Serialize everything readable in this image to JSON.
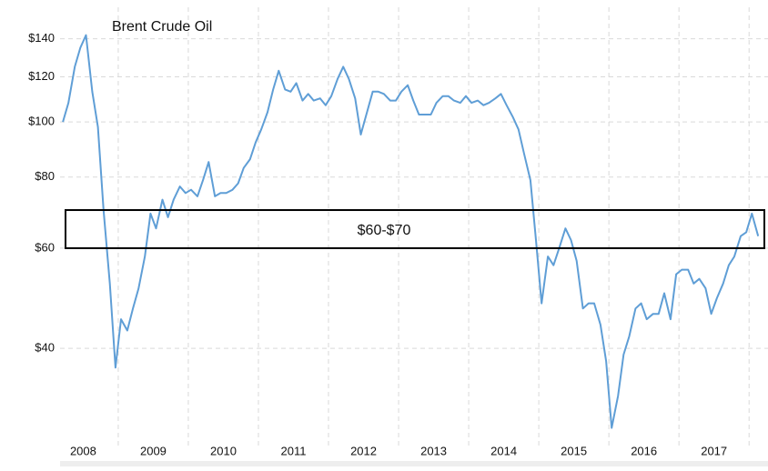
{
  "chart_data": {
    "type": "line",
    "title": "Brent Crude Oil",
    "log_scale_y": true,
    "grid": true,
    "xlim": [
      2008.17,
      2018.27
    ],
    "ylim": [
      27,
      159
    ],
    "yticks": [
      {
        "value": 40,
        "label": "$40"
      },
      {
        "value": 60,
        "label": "$60"
      },
      {
        "value": 80,
        "label": "$80"
      },
      {
        "value": 100,
        "label": "$100"
      },
      {
        "value": 120,
        "label": "$120"
      },
      {
        "value": 140,
        "label": "$140"
      }
    ],
    "xticks": [
      {
        "value": 2008.5,
        "label": "2008"
      },
      {
        "value": 2009.5,
        "label": "2009"
      },
      {
        "value": 2010.5,
        "label": "2010"
      },
      {
        "value": 2011.5,
        "label": "2011"
      },
      {
        "value": 2012.5,
        "label": "2012"
      },
      {
        "value": 2013.5,
        "label": "2013"
      },
      {
        "value": 2014.5,
        "label": "2014"
      },
      {
        "value": 2015.5,
        "label": "2015"
      },
      {
        "value": 2016.5,
        "label": "2016"
      },
      {
        "value": 2017.5,
        "label": "2017"
      }
    ],
    "xgrid": [
      2009,
      2010,
      2011,
      2012,
      2013,
      2014,
      2015,
      2016,
      2017,
      2018
    ],
    "annotation": {
      "text": "$60-$70",
      "ylim": [
        60,
        70
      ]
    },
    "x": [
      2008.21,
      2008.29,
      2008.38,
      2008.46,
      2008.54,
      2008.63,
      2008.71,
      2008.79,
      2008.88,
      2008.96,
      2009.04,
      2009.13,
      2009.21,
      2009.29,
      2009.38,
      2009.46,
      2009.54,
      2009.63,
      2009.71,
      2009.79,
      2009.88,
      2009.96,
      2010.04,
      2010.13,
      2010.21,
      2010.29,
      2010.38,
      2010.46,
      2010.54,
      2010.63,
      2010.71,
      2010.79,
      2010.88,
      2010.96,
      2011.04,
      2011.13,
      2011.21,
      2011.29,
      2011.38,
      2011.46,
      2011.54,
      2011.63,
      2011.71,
      2011.79,
      2011.88,
      2011.96,
      2012.04,
      2012.13,
      2012.21,
      2012.29,
      2012.38,
      2012.46,
      2012.54,
      2012.63,
      2012.71,
      2012.79,
      2012.88,
      2012.96,
      2013.04,
      2013.13,
      2013.21,
      2013.29,
      2013.38,
      2013.46,
      2013.54,
      2013.63,
      2013.71,
      2013.79,
      2013.88,
      2013.96,
      2014.04,
      2014.13,
      2014.21,
      2014.29,
      2014.38,
      2014.46,
      2014.54,
      2014.63,
      2014.71,
      2014.79,
      2014.88,
      2014.96,
      2015.04,
      2015.13,
      2015.21,
      2015.29,
      2015.38,
      2015.46,
      2015.54,
      2015.63,
      2015.71,
      2015.79,
      2015.88,
      2015.96,
      2016.04,
      2016.13,
      2016.21,
      2016.29,
      2016.38,
      2016.46,
      2016.54,
      2016.63,
      2016.71,
      2016.79,
      2016.88,
      2016.96,
      2017.04,
      2017.13,
      2017.21,
      2017.29,
      2017.38,
      2017.46,
      2017.54,
      2017.63,
      2017.71,
      2017.79,
      2017.88,
      2017.96,
      2018.04,
      2018.13
    ],
    "series": [
      {
        "name": "Brent Crude Oil",
        "color": "#5f9ed6",
        "values": [
          100,
          108,
          125,
          135,
          142,
          113,
          98,
          70,
          52,
          37,
          45,
          43,
          47,
          51,
          58,
          69,
          65,
          73,
          68,
          73,
          77,
          75,
          76,
          74,
          79,
          85,
          74,
          75,
          75,
          76,
          78,
          83,
          86,
          92,
          97,
          104,
          114,
          123,
          114,
          113,
          117,
          109,
          112,
          109,
          110,
          107,
          111,
          119,
          125,
          119,
          110,
          95,
          103,
          113,
          113,
          112,
          109,
          109,
          113,
          116,
          109,
          103,
          103,
          103,
          108,
          111,
          111,
          109,
          108,
          111,
          108,
          109,
          107,
          108,
          110,
          112,
          107,
          102,
          97,
          88,
          79,
          62,
          48,
          58,
          56,
          60,
          65,
          62,
          57,
          47,
          48,
          48,
          44,
          38,
          29,
          33,
          39,
          42,
          47,
          48,
          45,
          46,
          46,
          50,
          45,
          54,
          55,
          55,
          52,
          53,
          51,
          46,
          49,
          52,
          56,
          58,
          63,
          64,
          69,
          63
        ]
      }
    ]
  }
}
